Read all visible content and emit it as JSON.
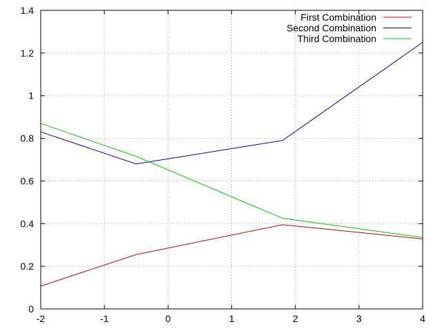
{
  "chart_data": {
    "type": "line",
    "title": "",
    "xlabel": "",
    "ylabel": "",
    "xlim": [
      -2,
      4
    ],
    "ylim": [
      0,
      1.4
    ],
    "xticks": [
      -2,
      -1,
      0,
      1,
      2,
      3,
      4
    ],
    "yticks": [
      0,
      0.2,
      0.4,
      0.6,
      0.8,
      1,
      1.2,
      1.4
    ],
    "xtick_labels": [
      "-2",
      "-1",
      "0",
      "1",
      "2",
      "3",
      "4"
    ],
    "ytick_labels": [
      "0",
      "0.2",
      "0.4",
      "0.6",
      "0.8",
      "1",
      "1.2",
      "1.4"
    ],
    "grid": true,
    "legend_position": "top-right",
    "series": [
      {
        "name": "First Combination",
        "color": "#cc0000",
        "x": [
          -2,
          -0.5,
          1.8,
          4
        ],
        "y": [
          0.107,
          0.255,
          0.395,
          0.328
        ]
      },
      {
        "name": "Second Combination",
        "color": "#0000aa",
        "x": [
          -2,
          -0.5,
          1.8,
          4
        ],
        "y": [
          0.83,
          0.68,
          0.79,
          1.25
        ]
      },
      {
        "name": "Third Combination",
        "color": "#00cc00",
        "x": [
          -2,
          -0.5,
          1.8,
          4
        ],
        "y": [
          0.87,
          0.715,
          0.425,
          0.335
        ]
      }
    ]
  }
}
